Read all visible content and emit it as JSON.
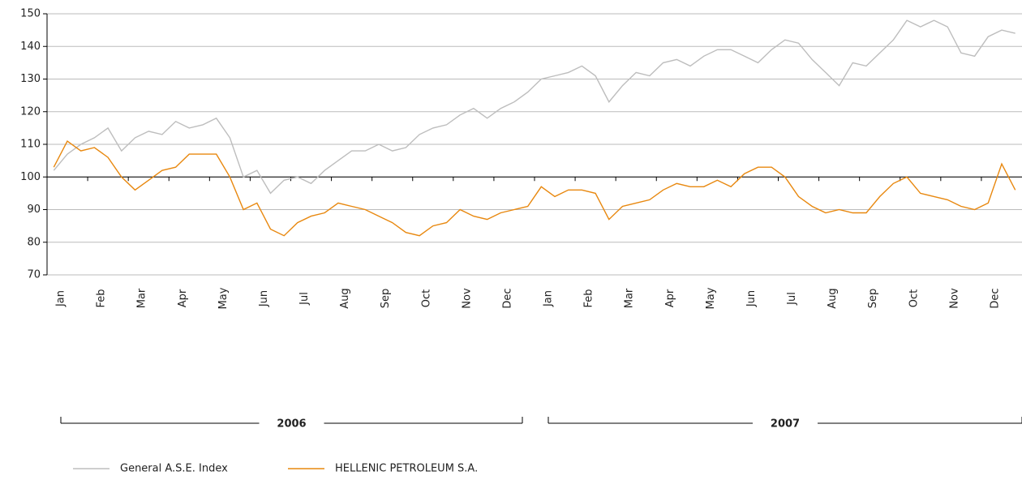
{
  "chart_data": {
    "type": "line",
    "categories": [
      null,
      "Jan",
      null,
      null,
      "Feb",
      null,
      null,
      "Mar",
      null,
      null,
      "Apr",
      null,
      null,
      "May",
      null,
      null,
      "Jun",
      null,
      null,
      "Jul",
      null,
      null,
      "Aug",
      null,
      null,
      "Sep",
      null,
      null,
      "Oct",
      null,
      null,
      "Nov",
      null,
      null,
      "Dec",
      null,
      null,
      "Jan",
      null,
      null,
      "Feb",
      null,
      null,
      "Mar",
      null,
      null,
      "Apr",
      null,
      null,
      "May",
      null,
      null,
      "Jun",
      null,
      null,
      "Jul",
      null,
      null,
      "Aug",
      null,
      null,
      "Sep",
      null,
      null,
      "Oct",
      null,
      null,
      "Nov",
      null,
      null,
      "Dec",
      null
    ],
    "year_labels": [
      "2006",
      "2007"
    ],
    "series": [
      {
        "name": "General A.S.E. Index",
        "color": "#bdbdbd",
        "values": [
          102,
          107,
          110,
          112,
          115,
          108,
          112,
          114,
          113,
          117,
          115,
          116,
          118,
          112,
          100,
          102,
          95,
          99,
          100,
          98,
          102,
          105,
          108,
          108,
          110,
          108,
          109,
          113,
          115,
          116,
          119,
          121,
          118,
          121,
          123,
          126,
          130,
          131,
          132,
          134,
          131,
          123,
          128,
          132,
          131,
          135,
          136,
          134,
          137,
          139,
          139,
          137,
          135,
          139,
          142,
          141,
          136,
          132,
          128,
          135,
          134,
          138,
          142,
          148,
          146,
          148,
          146,
          138,
          137,
          143,
          145,
          144
        ]
      },
      {
        "name": "HELLENIC PETROLEUM S.A.",
        "color": "#e8880f",
        "values": [
          103,
          111,
          108,
          109,
          106,
          100,
          96,
          99,
          102,
          103,
          107,
          107,
          107,
          100,
          90,
          92,
          84,
          82,
          86,
          88,
          89,
          92,
          91,
          90,
          88,
          86,
          83,
          82,
          85,
          86,
          90,
          88,
          87,
          89,
          90,
          91,
          97,
          94,
          96,
          96,
          95,
          87,
          91,
          92,
          93,
          96,
          98,
          97,
          97,
          99,
          97,
          101,
          103,
          103,
          100,
          94,
          91,
          89,
          90,
          89,
          89,
          94,
          98,
          100,
          95,
          94,
          93,
          91,
          90,
          92,
          104,
          96
        ]
      }
    ],
    "ylim": [
      70,
      150
    ],
    "yticks": [
      70,
      80,
      90,
      100,
      110,
      120,
      130,
      140,
      150
    ],
    "grid": true,
    "legend": "bottom"
  }
}
